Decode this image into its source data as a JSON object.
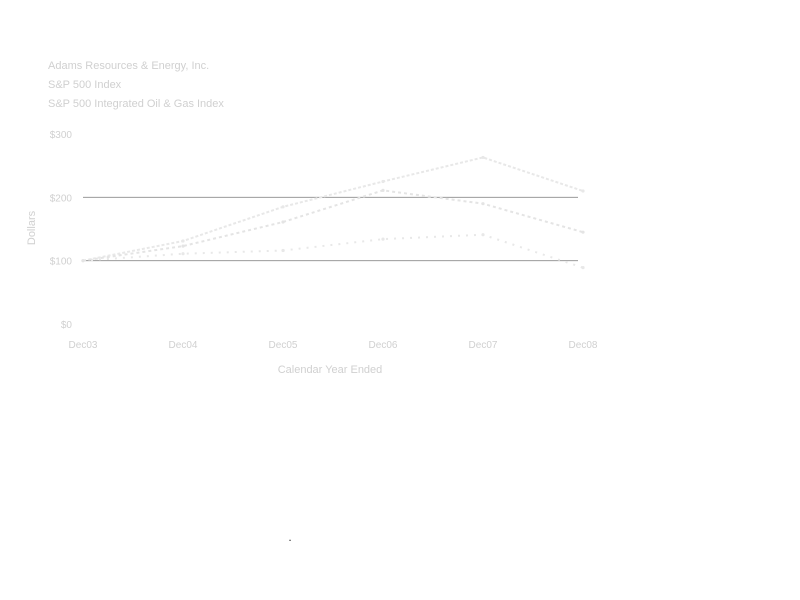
{
  "colors": {
    "background": "#ffffff",
    "text": "#d0d0d0",
    "gridline": "#8c8c8c",
    "series": [
      "#e8e8e8",
      "#e8e8e8",
      "#e4e4e4"
    ]
  },
  "chart_data": {
    "type": "line",
    "title": "",
    "xlabel": "Calendar Year Ended",
    "ylabel": "Dollars",
    "categories": [
      "Dec03",
      "Dec04",
      "Dec05",
      "Dec06",
      "Dec07",
      "Dec08"
    ],
    "y_ticks": [
      "$0",
      "$100",
      "$200",
      "$300"
    ],
    "y_tick_values": [
      0,
      100,
      200,
      300
    ],
    "ylim": [
      0,
      300
    ],
    "grid": true,
    "grid_values": [
      100,
      200
    ],
    "legend_position": "top-left",
    "series": [
      {
        "name": "Adams Resources & Energy, Inc.",
        "values": [
          100,
          131,
          185,
          225,
          263,
          210
        ]
      },
      {
        "name": "S&P 500 Index",
        "values": [
          100,
          111,
          116,
          134,
          141,
          89
        ]
      },
      {
        "name": "S&P 500 Integrated Oil & Gas Index",
        "values": [
          100,
          123,
          161,
          211,
          190,
          145
        ]
      }
    ]
  },
  "footer": {
    "mark": "."
  }
}
